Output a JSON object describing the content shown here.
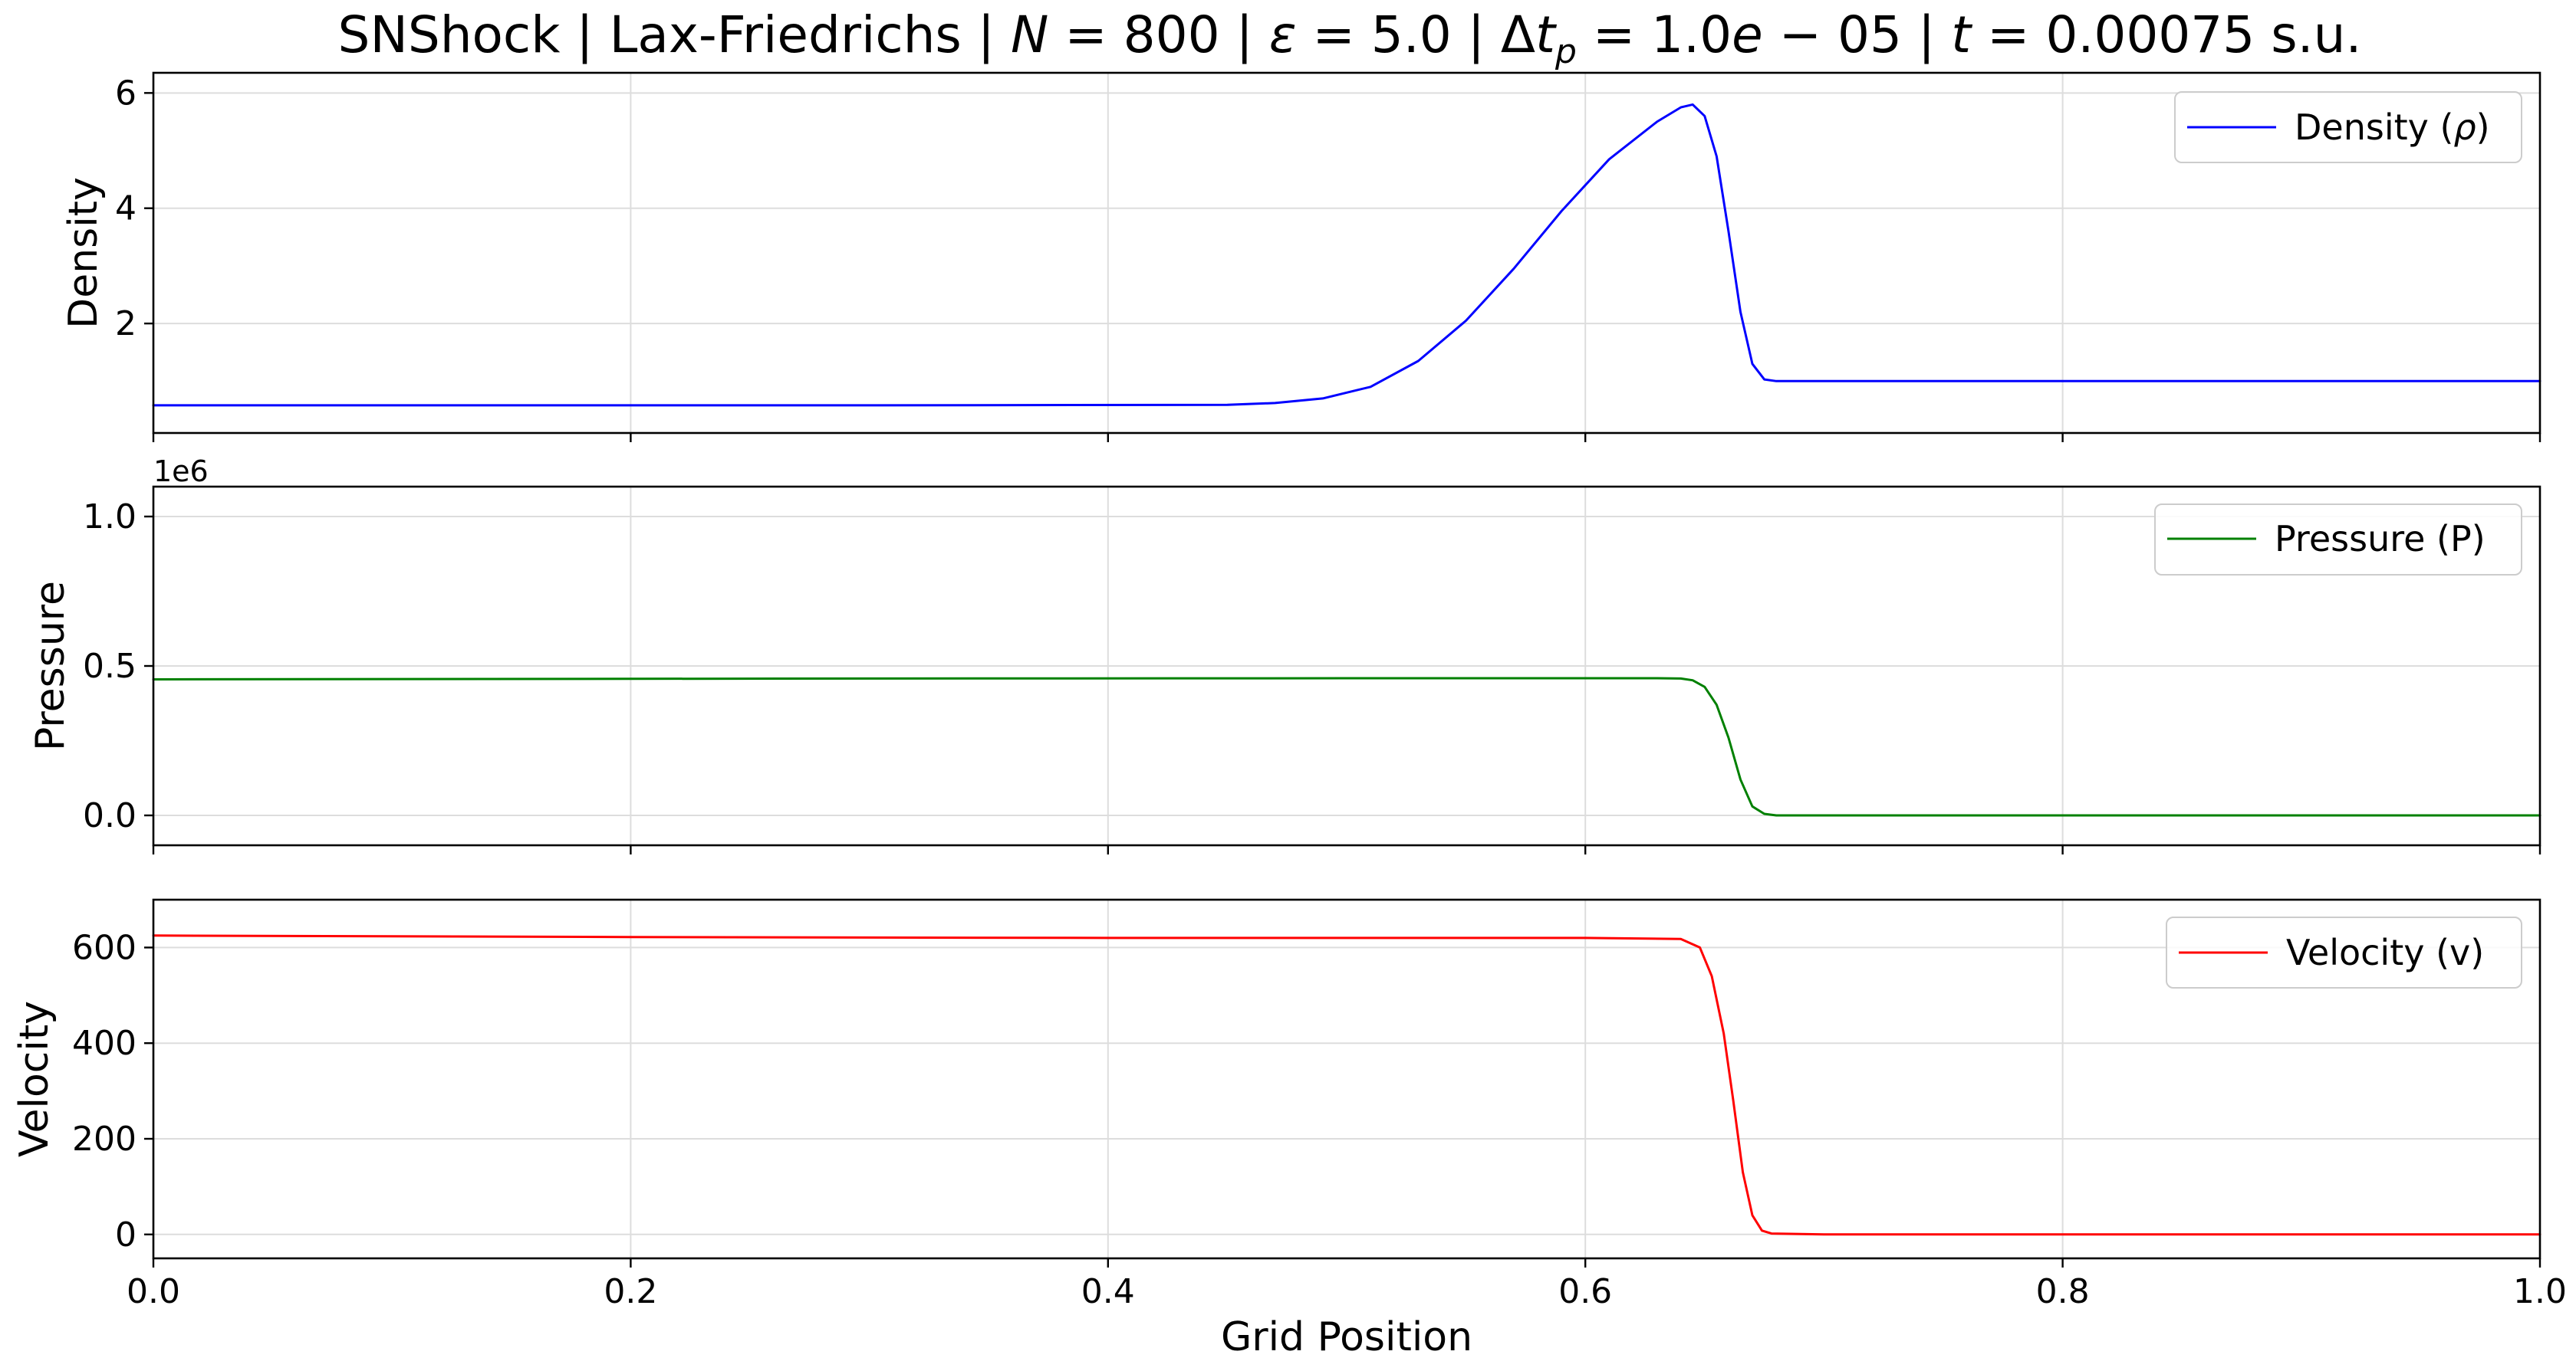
{
  "title": "SNShock | Lax-Friedrichs | N = 800 | ε = 5.0 | Δt_p = 1.0e − 05 | t = 0.00075 s.u.",
  "title_parts": {
    "prefix": "SNShock | Lax-Friedrichs | ",
    "n_var": "N",
    "n_val": " = 800 | ",
    "eps_var": "ε",
    "eps_val": " = 5.0 | Δ",
    "dt_var": "t",
    "dt_sub": "p",
    "dt_val": " = 1.0",
    "dt_e": "e",
    "dt_exp": " − 05 | ",
    "t_var": "t",
    "t_val": " = 0.00075 s.u."
  },
  "chart_data": [
    {
      "type": "line",
      "ylabel": "Density",
      "xlim": [
        0.0,
        1.0
      ],
      "ylim": [
        0.1,
        6.35
      ],
      "yticks": [
        2,
        4,
        6
      ],
      "ytick_labels": [
        "2",
        "4",
        "6"
      ],
      "grid": true,
      "legend_placement": "upper-right",
      "series": [
        {
          "name": "Density (ρ)",
          "name_base": "Density (",
          "name_sym": "ρ",
          "name_end": ")",
          "color": "#0000ff",
          "x": [
            0.0,
            0.3,
            0.45,
            0.47,
            0.49,
            0.51,
            0.53,
            0.55,
            0.57,
            0.59,
            0.61,
            0.63,
            0.64,
            0.645,
            0.65,
            0.655,
            0.66,
            0.665,
            0.67,
            0.675,
            0.68,
            0.7,
            1.0
          ],
          "y": [
            0.58,
            0.58,
            0.59,
            0.62,
            0.7,
            0.9,
            1.35,
            2.05,
            2.95,
            3.95,
            4.85,
            5.5,
            5.75,
            5.8,
            5.6,
            4.9,
            3.6,
            2.2,
            1.3,
            1.03,
            1.0,
            1.0,
            1.0
          ]
        }
      ]
    },
    {
      "type": "line",
      "ylabel": "Pressure",
      "offset_text": "1e6",
      "xlim": [
        0.0,
        1.0
      ],
      "ylim": [
        -0.1,
        1.1
      ],
      "yticks": [
        0.0,
        0.5,
        1.0
      ],
      "ytick_labels": [
        "0.0",
        "0.5",
        "1.0"
      ],
      "grid": true,
      "legend_placement": "upper-right",
      "series": [
        {
          "name": "Pressure (P)",
          "color": "#008000",
          "x": [
            0.0,
            0.3,
            0.5,
            0.63,
            0.64,
            0.645,
            0.65,
            0.655,
            0.66,
            0.665,
            0.67,
            0.675,
            0.68,
            1.0
          ],
          "y": [
            0.455,
            0.458,
            0.459,
            0.459,
            0.458,
            0.452,
            0.43,
            0.37,
            0.26,
            0.12,
            0.03,
            0.005,
            0.0,
            0.0
          ]
        }
      ]
    },
    {
      "type": "line",
      "ylabel": "Velocity",
      "xlabel": "Grid Position",
      "xlim": [
        0.0,
        1.0
      ],
      "ylim": [
        -50,
        700
      ],
      "yticks": [
        0,
        200,
        400,
        600
      ],
      "ytick_labels": [
        "0",
        "200",
        "400",
        "600"
      ],
      "xticks": [
        0.0,
        0.2,
        0.4,
        0.6,
        0.8,
        1.0
      ],
      "xtick_labels": [
        "0.0",
        "0.2",
        "0.4",
        "0.6",
        "0.8",
        "1.0"
      ],
      "grid": true,
      "legend_placement": "upper-right",
      "series": [
        {
          "name": "Velocity (v)",
          "color": "#ff0000",
          "x": [
            0.0,
            0.2,
            0.4,
            0.6,
            0.64,
            0.648,
            0.653,
            0.658,
            0.662,
            0.666,
            0.67,
            0.674,
            0.678,
            0.7,
            1.0
          ],
          "y": [
            625,
            622,
            620,
            620,
            618,
            600,
            540,
            420,
            280,
            130,
            40,
            8,
            2,
            0,
            0
          ]
        }
      ]
    }
  ]
}
